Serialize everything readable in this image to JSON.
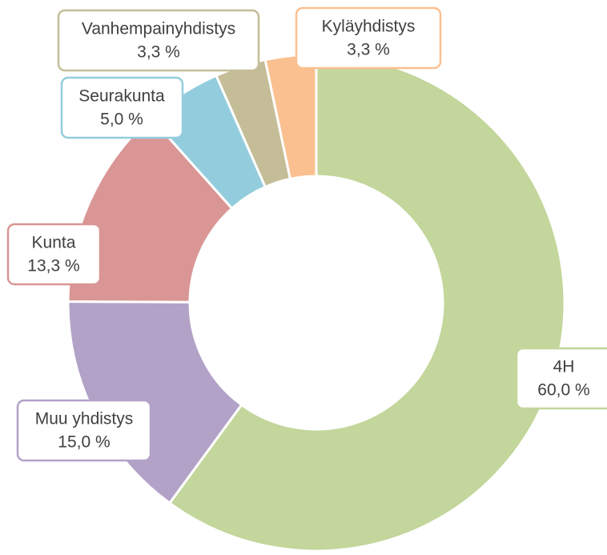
{
  "chart_data": {
    "type": "donut",
    "categories": [
      "4H",
      "Muu yhdistys",
      "Kunta",
      "Seurakunta",
      "Vanhempainyhdistys",
      "Kyläyhdistys"
    ],
    "values": [
      60.0,
      15.0,
      13.3,
      5.0,
      3.3,
      3.3
    ],
    "value_labels": [
      "60,0 %",
      "15,0 %",
      "13,3 %",
      "5,0 %",
      "3,3 %",
      "3,3 %"
    ],
    "colors": [
      "#c3d69b",
      "#b3a2c7",
      "#d99694",
      "#93cddd",
      "#c4bd97",
      "#fac090"
    ]
  }
}
